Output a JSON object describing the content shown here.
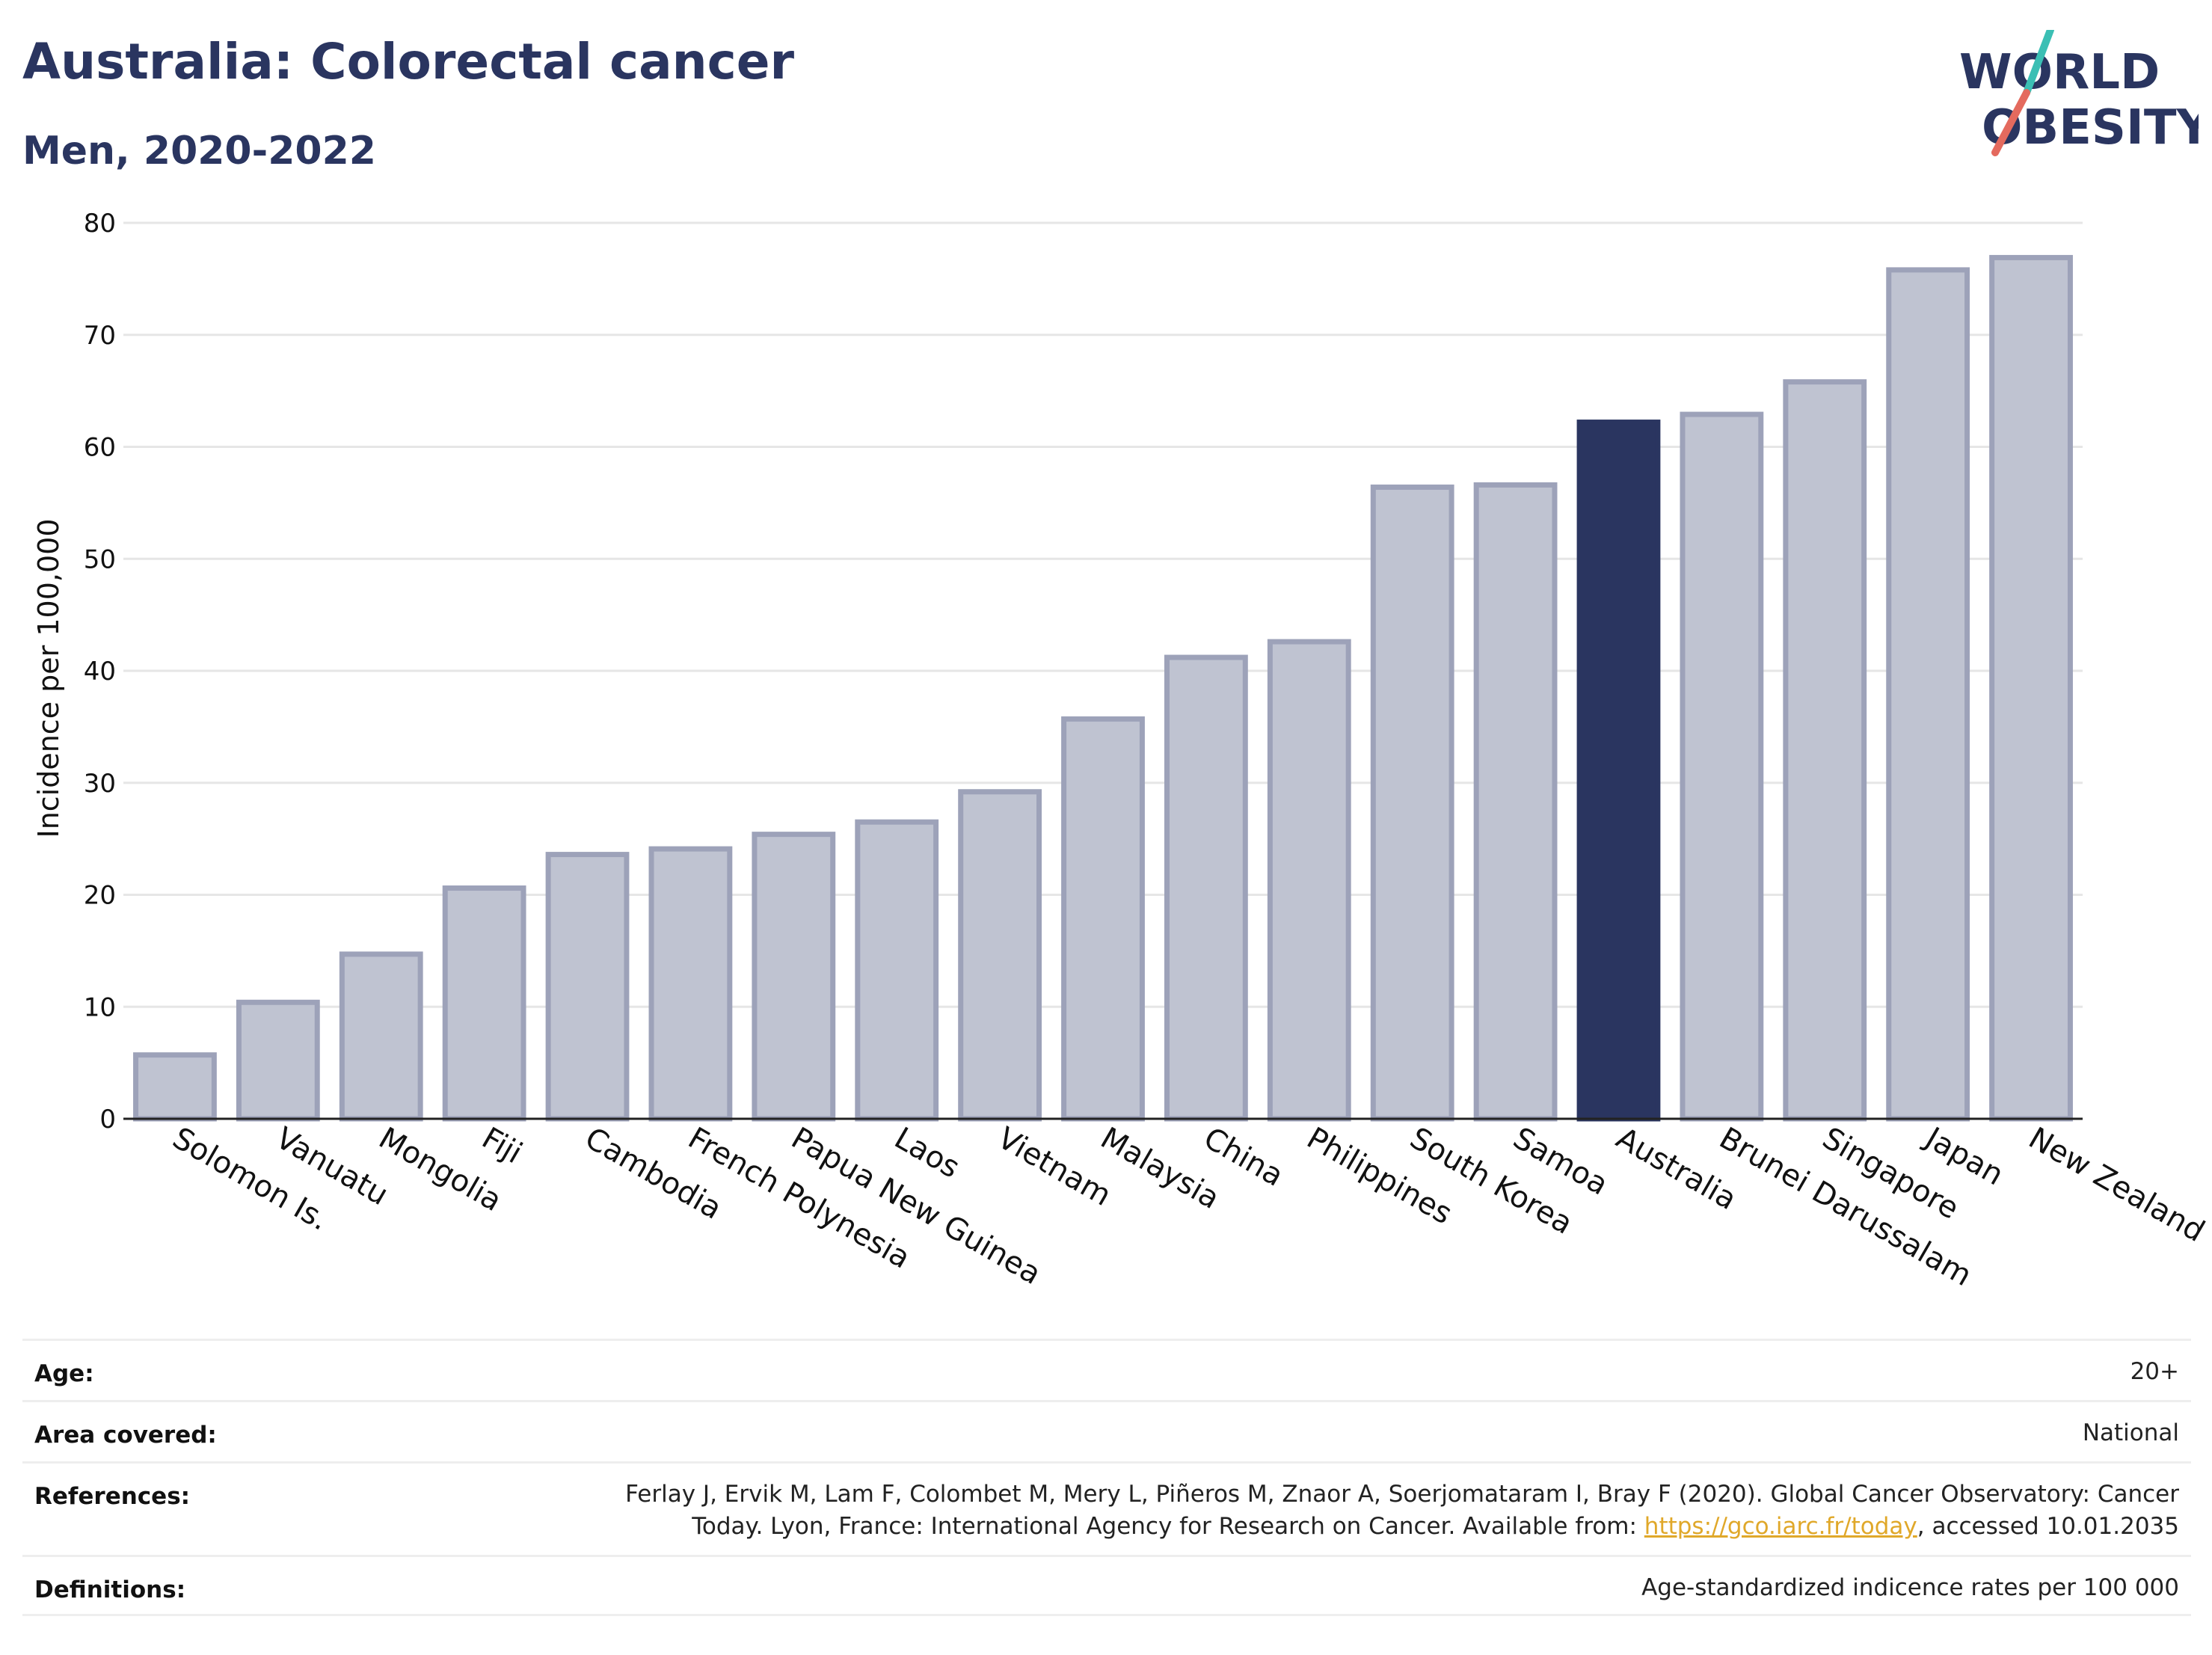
{
  "title": "Australia: Colorectal cancer",
  "subtitle": "Men, 2020-2022",
  "logo": {
    "line1": "WORLD",
    "line2": "OBESITY",
    "icon": "world-obesity-logo-slash"
  },
  "chart_data": {
    "type": "bar",
    "ylabel": "Incidence per 100,000",
    "xlabel": "",
    "ylim": [
      0,
      80
    ],
    "yticks": [
      0,
      10,
      20,
      30,
      40,
      50,
      60,
      70,
      80
    ],
    "grid": true,
    "highlight": "Australia",
    "colors": {
      "bar": "#bfc3d1",
      "bar_border": "#9da2b9",
      "highlight": "#2a3560",
      "grid": "#e6e6e6"
    },
    "categories": [
      "Solomon Is.",
      "Vanuatu",
      "Mongolia",
      "Fiji",
      "Cambodia",
      "French Polynesia",
      "Papua New Guinea",
      "Laos",
      "Vietnam",
      "Malaysia",
      "China",
      "Philippines",
      "South Korea",
      "Samoa",
      "Australia",
      "Brunei Darussalam",
      "Singapore",
      "Japan",
      "New Zealand"
    ],
    "values": [
      5.7,
      10.4,
      14.7,
      20.6,
      23.6,
      24.1,
      25.4,
      26.5,
      29.2,
      35.7,
      41.2,
      42.6,
      56.4,
      56.6,
      62.2,
      62.9,
      65.8,
      75.8,
      76.9
    ]
  },
  "info": {
    "age": {
      "label": "Age:",
      "value": "20+"
    },
    "area": {
      "label": "Area covered:",
      "value": "National"
    },
    "references": {
      "label": "References:",
      "line1": "Ferlay J, Ervik M, Lam F, Colombet M, Mery L, Piñeros M, Znaor A, Soerjomataram I, Bray F (2020). Global Cancer Observatory: Cancer",
      "line2_pre": "Today. Lyon, France: International Agency for Research on Cancer. Available from: ",
      "link": "https://gco.iarc.fr/today",
      "line2_post": ", accessed 10.01.2035"
    },
    "definitions": {
      "label": "Definitions:",
      "value": "Age-standardized indicence rates per 100 000"
    }
  }
}
